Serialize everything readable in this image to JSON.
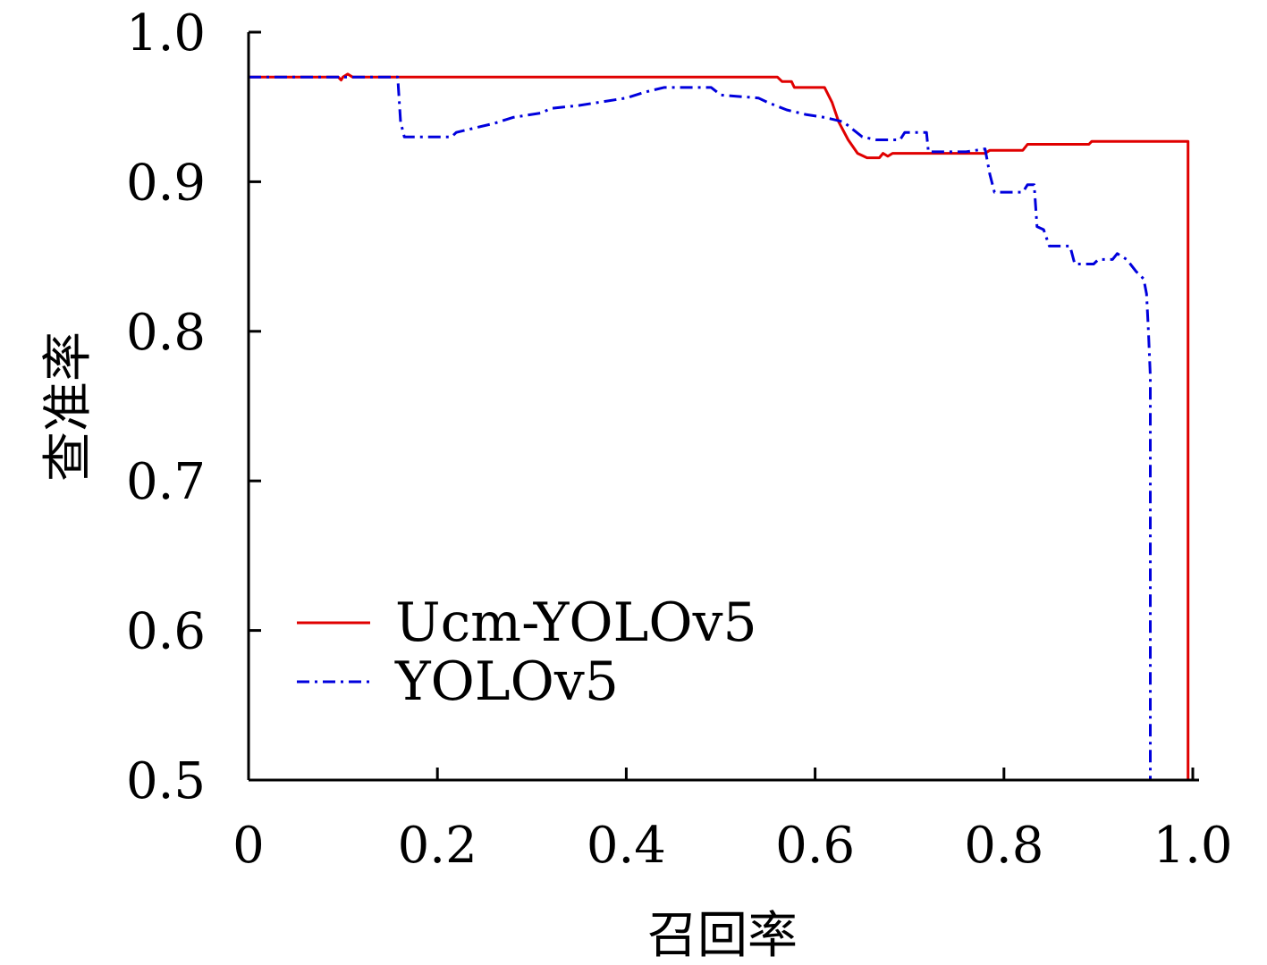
{
  "chart_data": {
    "type": "line",
    "title": "",
    "xlabel": "召回率",
    "ylabel": "查准率",
    "xlim": [
      0,
      1.0
    ],
    "ylim": [
      0.5,
      1.0
    ],
    "x_ticks": [
      0,
      0.2,
      0.4,
      0.6,
      0.8,
      1.0
    ],
    "x_tick_labels": [
      "0",
      "0.2",
      "0.4",
      "0.6",
      "0.8",
      "1.0"
    ],
    "y_ticks": [
      0.5,
      0.6,
      0.7,
      0.8,
      0.9,
      1.0
    ],
    "y_tick_labels": [
      "0.5",
      "0.6",
      "0.7",
      "0.8",
      "0.9",
      "1.0"
    ],
    "grid": false,
    "legend": {
      "position": "lower-left"
    },
    "series": [
      {
        "name": "Ucm-YOLOv5",
        "color": "#e00000",
        "dash": "solid",
        "points": [
          [
            0,
            0.97
          ],
          [
            0.095,
            0.97
          ],
          [
            0.098,
            0.968
          ],
          [
            0.1,
            0.97
          ],
          [
            0.105,
            0.972
          ],
          [
            0.11,
            0.97
          ],
          [
            0.56,
            0.97
          ],
          [
            0.565,
            0.967
          ],
          [
            0.575,
            0.967
          ],
          [
            0.578,
            0.963
          ],
          [
            0.61,
            0.963
          ],
          [
            0.618,
            0.953
          ],
          [
            0.625,
            0.94
          ],
          [
            0.635,
            0.928
          ],
          [
            0.645,
            0.919
          ],
          [
            0.655,
            0.916
          ],
          [
            0.668,
            0.916
          ],
          [
            0.672,
            0.919
          ],
          [
            0.677,
            0.917
          ],
          [
            0.682,
            0.919
          ],
          [
            0.78,
            0.919
          ],
          [
            0.785,
            0.921
          ],
          [
            0.82,
            0.921
          ],
          [
            0.825,
            0.925
          ],
          [
            0.89,
            0.925
          ],
          [
            0.893,
            0.927
          ],
          [
            0.995,
            0.927
          ],
          [
            0.995,
            0.5
          ]
        ]
      },
      {
        "name": "YOLOv5",
        "color": "#0000dd",
        "dash": "dashdot",
        "points": [
          [
            0,
            0.97
          ],
          [
            0.158,
            0.97
          ],
          [
            0.161,
            0.94
          ],
          [
            0.165,
            0.93
          ],
          [
            0.215,
            0.93
          ],
          [
            0.22,
            0.933
          ],
          [
            0.24,
            0.936
          ],
          [
            0.26,
            0.939
          ],
          [
            0.28,
            0.943
          ],
          [
            0.31,
            0.946
          ],
          [
            0.32,
            0.949
          ],
          [
            0.35,
            0.951
          ],
          [
            0.37,
            0.953
          ],
          [
            0.4,
            0.956
          ],
          [
            0.42,
            0.96
          ],
          [
            0.44,
            0.963
          ],
          [
            0.49,
            0.963
          ],
          [
            0.5,
            0.958
          ],
          [
            0.54,
            0.956
          ],
          [
            0.55,
            0.953
          ],
          [
            0.57,
            0.948
          ],
          [
            0.59,
            0.945
          ],
          [
            0.61,
            0.943
          ],
          [
            0.63,
            0.94
          ],
          [
            0.64,
            0.935
          ],
          [
            0.65,
            0.93
          ],
          [
            0.665,
            0.928
          ],
          [
            0.69,
            0.928
          ],
          [
            0.695,
            0.933
          ],
          [
            0.718,
            0.933
          ],
          [
            0.72,
            0.92
          ],
          [
            0.76,
            0.92
          ],
          [
            0.78,
            0.922
          ],
          [
            0.785,
            0.905
          ],
          [
            0.79,
            0.893
          ],
          [
            0.82,
            0.893
          ],
          [
            0.825,
            0.898
          ],
          [
            0.832,
            0.898
          ],
          [
            0.835,
            0.87
          ],
          [
            0.842,
            0.868
          ],
          [
            0.848,
            0.857
          ],
          [
            0.87,
            0.857
          ],
          [
            0.875,
            0.845
          ],
          [
            0.895,
            0.845
          ],
          [
            0.9,
            0.848
          ],
          [
            0.915,
            0.848
          ],
          [
            0.92,
            0.852
          ],
          [
            0.93,
            0.848
          ],
          [
            0.94,
            0.84
          ],
          [
            0.948,
            0.835
          ],
          [
            0.951,
            0.825
          ],
          [
            0.953,
            0.8
          ],
          [
            0.955,
            0.77
          ],
          [
            0.955,
            0.5
          ]
        ]
      }
    ]
  }
}
